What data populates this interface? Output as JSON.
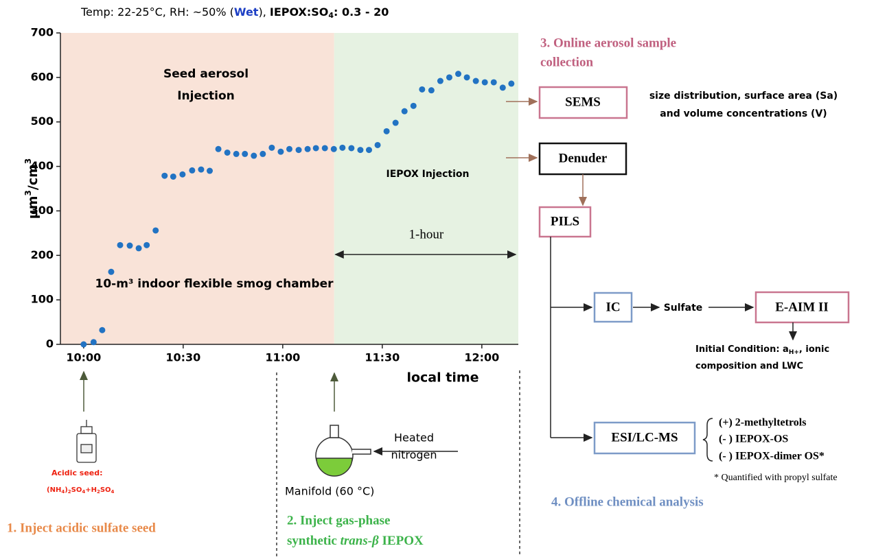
{
  "figure_title": {
    "prefix": "Temp: 22-25°C, RH: ~50% (",
    "highlight": "Wet",
    "middle": "), ",
    "ratio_label": "IEPOX:SO",
    "ratio_sub": "4",
    "ratio_value": ": 0.3 - 20"
  },
  "chart_data": {
    "type": "scatter",
    "color": "#2273c3",
    "x_label": "local time",
    "y_label": {
      "base": "μm",
      "sup": "3",
      "unit": "/cm",
      "sup2": "3"
    },
    "xlim": [
      -7,
      131
    ],
    "ylim": [
      0,
      700
    ],
    "xticks": [
      {
        "value": 0,
        "label": "10:00"
      },
      {
        "value": 30,
        "label": "10:30"
      },
      {
        "value": 60,
        "label": "11:00"
      },
      {
        "value": 90,
        "label": "11:30"
      },
      {
        "value": 120,
        "label": "12:00"
      }
    ],
    "yticks": [
      0,
      100,
      200,
      300,
      400,
      500,
      600,
      700
    ],
    "spans": [
      {
        "start": -7,
        "end": 75.5,
        "color": "#f9e3d8"
      },
      {
        "start": 75.5,
        "end": 131,
        "color": "#e6f2e2"
      }
    ],
    "annotations": {
      "seed": [
        "Seed aerosol",
        "Injection"
      ],
      "iepox": "IEPOX Injection",
      "chamber": "10-m³ indoor flexible smog chamber"
    },
    "interval": {
      "label": "1-hour",
      "start": 75.5,
      "end": 131
    },
    "x": [
      0,
      3,
      5.6,
      8.3,
      11,
      13.9,
      16.6,
      19,
      21.7,
      24.4,
      27,
      29.8,
      32.7,
      35.4,
      38,
      40.6,
      43.3,
      46,
      48.6,
      51.3,
      54,
      56.7,
      59.4,
      62,
      64.8,
      67.5,
      70,
      72.7,
      75.4,
      78,
      80.7,
      83.4,
      86,
      88.6,
      91.3,
      94,
      96.7,
      99.4,
      102,
      104.8,
      107.5,
      110.2,
      112.9,
      115.5,
      118.2,
      120.9,
      123.6,
      126.3,
      128.9
    ],
    "values": [
      0,
      5,
      32,
      163,
      223,
      222,
      216,
      223,
      256,
      379,
      377,
      382,
      391,
      393,
      390,
      439,
      431,
      428,
      428,
      424,
      428,
      442,
      433,
      439,
      437,
      439,
      441,
      441,
      439,
      442,
      441,
      437,
      437,
      448,
      479,
      498,
      524,
      536,
      573,
      571,
      592,
      600,
      608,
      600,
      592,
      589,
      589,
      577,
      586
    ]
  },
  "steps": {
    "online": [
      "3. Online aerosol sample",
      "collection"
    ],
    "offline": "4. Offline chemical analysis",
    "seed": "1. Inject acidic sulfate seed",
    "iepox": [
      "2. Inject gas-phase",
      "synthetic ",
      "trans-β",
      " IEPOX"
    ]
  },
  "instruments": {
    "sems": "SEMS",
    "denuder": "Denuder",
    "pils": "PILS",
    "ic": "IC",
    "eaim": "E-AIM II",
    "esi": "ESI/LC-MS"
  },
  "notes": {
    "sems": [
      "size distribution, surface area (Sa)",
      "and volume concentrations (V)"
    ],
    "eaim": {
      "prefix": "Initial Condition: a",
      "sub": "H+",
      "suffix": ", ionic",
      "line2": "composition and LWC"
    },
    "quantified": "* Quantified with propyl sulfate"
  },
  "products": [
    "(+) 2-methyltetrols",
    "(- ) IEPOX-OS",
    "(- ) IEPOX-dimer OS*"
  ],
  "labels": {
    "sulfate": "Sulfate",
    "seed": [
      "Acidic seed:",
      "(NH",
      "4",
      ")",
      "2",
      "SO",
      "4",
      "+H",
      "2",
      "SO",
      "4"
    ],
    "heated": [
      "Heated",
      "nitrogen"
    ],
    "manifold": "Manifold (60 °C)"
  }
}
